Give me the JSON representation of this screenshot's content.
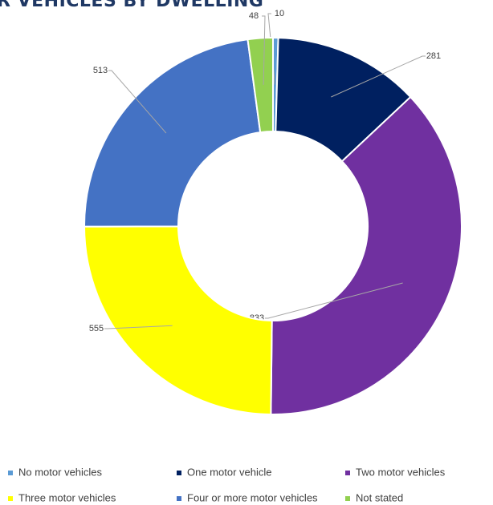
{
  "chart_data": {
    "type": "donut",
    "title": "R VEHICLES BY DWELLING",
    "categories": [
      "No motor vehicles",
      "One motor vehicle",
      "Two motor vehicles",
      "Three motor vehicles",
      "Four or more motor vehicles",
      "Not stated"
    ],
    "values": [
      10,
      281,
      833,
      555,
      513,
      48
    ],
    "colors": [
      "#5b9bd5",
      "#002060",
      "#7030a0",
      "#ffff00",
      "#4472c4",
      "#92d050"
    ],
    "legend": "bottom"
  }
}
